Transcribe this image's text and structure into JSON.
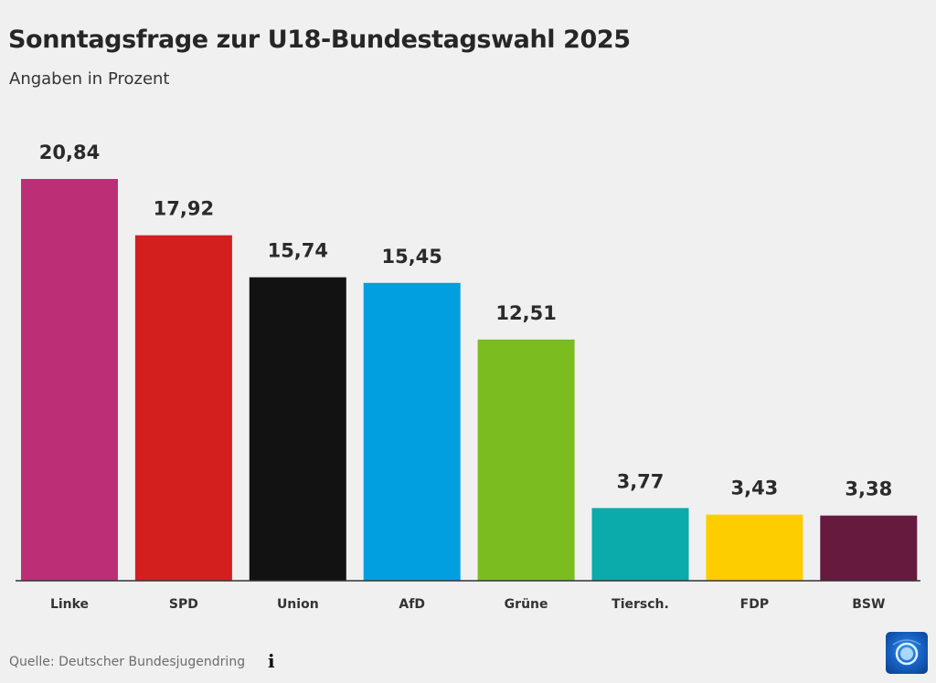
{
  "header": {
    "title": "Sonntagsfrage zur U18-Bundestagswahl 2025",
    "subtitle": "Angaben in Prozent"
  },
  "footer": {
    "source": "Quelle: Deutscher Bundesjugendring",
    "info_icon": "info-icon",
    "logo_icon": "tagesschau-logo-icon"
  },
  "chart_data": {
    "type": "bar",
    "title": "Sonntagsfrage zur U18-Bundestagswahl 2025",
    "subtitle": "Angaben in Prozent",
    "xlabel": "",
    "ylabel": "",
    "ylim": [
      0,
      20.84
    ],
    "grid": false,
    "legend": "none",
    "categories": [
      "Linke",
      "SPD",
      "Union",
      "AfD",
      "Grüne",
      "Tiersch.",
      "FDP",
      "BSW"
    ],
    "values": [
      20.84,
      17.92,
      15.74,
      15.45,
      12.51,
      3.77,
      3.43,
      3.38
    ],
    "value_labels": [
      "20,84",
      "17,92",
      "15,74",
      "15,45",
      "12,51",
      "3,77",
      "3,43",
      "3,38"
    ],
    "colors": [
      "#bc2f77",
      "#d41f1f",
      "#121212",
      "#029fe0",
      "#7bbc1e",
      "#0aabaa",
      "#fecd00",
      "#651a3e"
    ]
  }
}
